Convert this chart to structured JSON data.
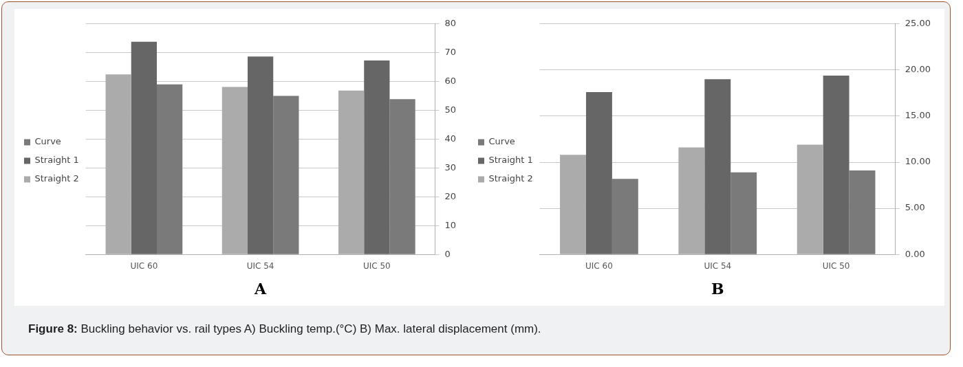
{
  "chart_data": [
    {
      "type": "bar",
      "xlabel": "A",
      "categories": [
        "UIC 60",
        "UIC 54",
        "UIC 50"
      ],
      "series": [
        {
          "name": "Straight 2",
          "color": "#ababab",
          "values": [
            62.5,
            58.1,
            56.9
          ]
        },
        {
          "name": "Straight 1",
          "color": "#666666",
          "values": [
            73.8,
            68.7,
            67.3
          ]
        },
        {
          "name": "Curve",
          "color": "#7a7a7a",
          "values": [
            59.0,
            55.0,
            53.9
          ]
        }
      ],
      "ylim": [
        0,
        80
      ],
      "yticks": [
        0,
        10,
        20,
        30,
        40,
        50,
        60,
        70,
        80
      ],
      "grid": "y",
      "legend": "left"
    },
    {
      "type": "bar",
      "xlabel": "B",
      "categories": [
        "UIC 60",
        "UIC 54",
        "UIC 50"
      ],
      "series": [
        {
          "name": "Straight 2",
          "color": "#ababab",
          "values": [
            10.8,
            11.6,
            11.9
          ]
        },
        {
          "name": "Straight 1",
          "color": "#666666",
          "values": [
            17.6,
            19.0,
            19.4
          ]
        },
        {
          "name": "Curve",
          "color": "#7a7a7a",
          "values": [
            8.2,
            8.9,
            9.1
          ]
        }
      ],
      "ylim": [
        0,
        25
      ],
      "yticks": [
        {
          "value": 0,
          "label": "0.00"
        },
        {
          "value": 5,
          "label": "5.00"
        },
        {
          "value": 10,
          "label": "10.00"
        },
        {
          "value": 15,
          "label": "15.00"
        },
        {
          "value": 20,
          "label": "20.00"
        },
        {
          "value": 25,
          "label": "25.00"
        }
      ],
      "grid": "y",
      "legend": "left",
      "annotations": [
        "Figure 8: Buckling behavior vs. rail types A) Buckling temp.(°C) B) Max. lateral displacement (mm)."
      ]
    }
  ]
}
